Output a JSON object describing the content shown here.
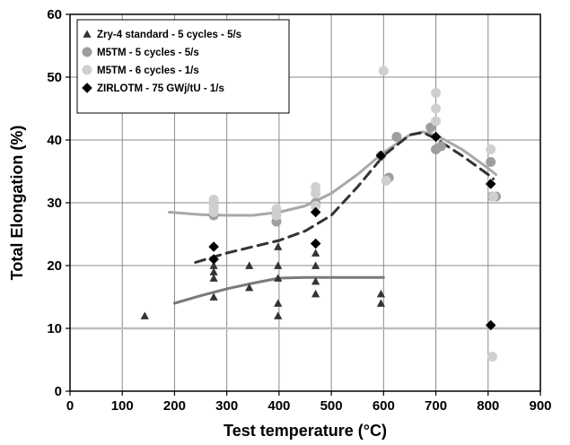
{
  "chart_data": {
    "type": "scatter",
    "title": "",
    "xlabel": "Test temperature (°C)",
    "ylabel": "Total Elongation (%)",
    "xlim": [
      0,
      900
    ],
    "ylim": [
      0,
      60
    ],
    "xticks": [
      "0",
      "100",
      "200",
      "300",
      "400",
      "500",
      "600",
      "700",
      "800",
      "900"
    ],
    "yticks": [
      "0",
      "10",
      "20",
      "30",
      "40",
      "50",
      "60"
    ],
    "grid": true,
    "legend_position": "top-left",
    "colors": {
      "zry4": "#333333",
      "m5_5cycles": "#9e9e9e",
      "m5_6cycles": "#cfcfcf",
      "zirlo": "#000000",
      "trend_zry4": "#7a7a7a",
      "trend_m5": "#a8a8a8",
      "trend_zirlo": "#333333",
      "reference_line": "#bdbdbd"
    },
    "series": [
      {
        "name": "Zry-4 standard - 5 cycles - 5/s",
        "marker": "triangle",
        "color_key": "zry4",
        "points": [
          [
            143,
            12
          ],
          [
            275,
            15
          ],
          [
            275,
            18
          ],
          [
            275,
            19
          ],
          [
            275,
            20
          ],
          [
            343,
            16.5
          ],
          [
            343,
            20
          ],
          [
            398,
            12
          ],
          [
            398,
            14
          ],
          [
            398,
            18
          ],
          [
            398,
            20
          ],
          [
            398,
            23
          ],
          [
            470,
            15.5
          ],
          [
            470,
            17.5
          ],
          [
            470,
            20
          ],
          [
            470,
            22
          ],
          [
            595,
            14
          ],
          [
            595,
            15.5
          ]
        ]
      },
      {
        "name": "M5TM - 5 cycles - 5/s",
        "marker": "circle",
        "color_key": "m5_5cycles",
        "points": [
          [
            275,
            28
          ],
          [
            395,
            27
          ],
          [
            470,
            30
          ],
          [
            595,
            37.5
          ],
          [
            610,
            34
          ],
          [
            625,
            40.5
          ],
          [
            690,
            42
          ],
          [
            700,
            38.5
          ],
          [
            710,
            39
          ],
          [
            805,
            36.5
          ],
          [
            808,
            31
          ],
          [
            815,
            31
          ]
        ]
      },
      {
        "name": "M5TM - 6 cycles - 1/s",
        "marker": "circle",
        "color_key": "m5_6cycles",
        "points": [
          [
            275,
            30.5
          ],
          [
            275,
            29.5
          ],
          [
            275,
            29
          ],
          [
            275,
            28.5
          ],
          [
            395,
            29
          ],
          [
            395,
            28
          ],
          [
            470,
            32.5
          ],
          [
            470,
            31.5
          ],
          [
            470,
            29.5
          ],
          [
            600,
            51
          ],
          [
            605,
            33.5
          ],
          [
            700,
            47.5
          ],
          [
            700,
            45
          ],
          [
            700,
            43
          ],
          [
            805,
            38.5
          ],
          [
            810,
            31
          ],
          [
            808,
            5.5
          ]
        ]
      },
      {
        "name": "ZIRLOTM - 75 GWj/tU - 1/s",
        "marker": "diamond",
        "color_key": "zirlo",
        "points": [
          [
            275,
            23
          ],
          [
            275,
            21
          ],
          [
            470,
            28.5
          ],
          [
            470,
            23.5
          ],
          [
            595,
            37.5
          ],
          [
            700,
            40.5
          ],
          [
            805,
            33
          ],
          [
            805,
            10.5
          ]
        ]
      }
    ],
    "trend_lines": [
      {
        "color_key": "trend_zry4",
        "style": "solid",
        "points": [
          [
            200,
            14
          ],
          [
            250,
            15.2
          ],
          [
            300,
            16.3
          ],
          [
            350,
            17.2
          ],
          [
            400,
            18
          ],
          [
            450,
            18.1
          ],
          [
            500,
            18.1
          ],
          [
            550,
            18.1
          ],
          [
            600,
            18.1
          ]
        ]
      },
      {
        "color_key": "trend_m5",
        "style": "solid",
        "points": [
          [
            190,
            28.5
          ],
          [
            250,
            28.1
          ],
          [
            300,
            28
          ],
          [
            350,
            28
          ],
          [
            400,
            28.5
          ],
          [
            450,
            29.5
          ],
          [
            500,
            31.5
          ],
          [
            550,
            34.5
          ],
          [
            600,
            38
          ],
          [
            650,
            40.8
          ],
          [
            675,
            41.3
          ],
          [
            700,
            40.8
          ],
          [
            750,
            38.5
          ],
          [
            800,
            35.5
          ],
          [
            815,
            34.5
          ]
        ]
      },
      {
        "color_key": "trend_zirlo",
        "style": "dashed",
        "points": [
          [
            240,
            20.5
          ],
          [
            300,
            22
          ],
          [
            350,
            23
          ],
          [
            400,
            24
          ],
          [
            450,
            25.5
          ],
          [
            500,
            28
          ],
          [
            550,
            32.5
          ],
          [
            600,
            37.5
          ],
          [
            650,
            40.8
          ],
          [
            675,
            41.2
          ],
          [
            700,
            40.2
          ],
          [
            750,
            37.5
          ],
          [
            800,
            34.5
          ],
          [
            810,
            33.8
          ]
        ]
      }
    ],
    "reference_lines": [
      {
        "axis": "y",
        "value": 10,
        "color_key": "reference_line"
      }
    ]
  }
}
